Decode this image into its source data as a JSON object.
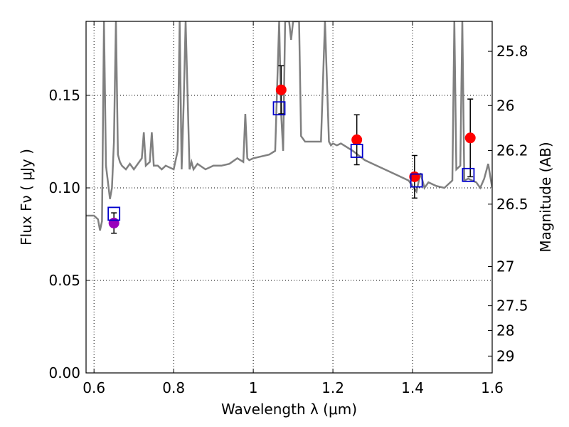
{
  "chart_data": {
    "type": "scatter",
    "title": "",
    "xlabel": "Wavelength  λ (μm)",
    "ylabel": "Flux  Fν  ( μJy )",
    "ylabel_right": "Magnitude (AB)",
    "xlim": [
      0.58,
      1.6
    ],
    "ylim": [
      0.0,
      0.19
    ],
    "grid": true,
    "x_ticks": [
      0.6,
      0.8,
      1.0,
      1.2,
      1.4,
      1.6
    ],
    "x_tick_labels": [
      "0.6",
      "0.8",
      "1",
      "1.2",
      "1.4",
      "1.6"
    ],
    "y_ticks": [
      0.0,
      0.05,
      0.1,
      0.15
    ],
    "y_tick_labels": [
      "0.00",
      "0.05",
      "0.10",
      "0.15"
    ],
    "right_ticks": [
      {
        "label": "25.8",
        "flux": 0.1738
      },
      {
        "label": "26",
        "flux": 0.1445
      },
      {
        "label": "26.2",
        "flux": 0.1202
      },
      {
        "label": "26.5",
        "flux": 0.0912
      },
      {
        "label": "27",
        "flux": 0.0575
      },
      {
        "label": "27.5",
        "flux": 0.0363
      },
      {
        "label": "28",
        "flux": 0.0229
      },
      {
        "label": "29",
        "flux": 0.0091
      }
    ],
    "model_spectrum": {
      "color": "#808080",
      "x": [
        0.58,
        0.6,
        0.61,
        0.615,
        0.62,
        0.625,
        0.63,
        0.64,
        0.645,
        0.65,
        0.655,
        0.66,
        0.665,
        0.67,
        0.68,
        0.69,
        0.7,
        0.72,
        0.725,
        0.73,
        0.74,
        0.745,
        0.75,
        0.76,
        0.77,
        0.78,
        0.8,
        0.81,
        0.815,
        0.82,
        0.825,
        0.83,
        0.84,
        0.845,
        0.85,
        0.86,
        0.88,
        0.9,
        0.92,
        0.94,
        0.96,
        0.975,
        0.98,
        0.985,
        0.99,
        1.0,
        1.02,
        1.04,
        1.055,
        1.06,
        1.065,
        1.07,
        1.075,
        1.08,
        1.085,
        1.09,
        1.095,
        1.1,
        1.105,
        1.11,
        1.115,
        1.12,
        1.13,
        1.14,
        1.15,
        1.17,
        1.18,
        1.19,
        1.195,
        1.2,
        1.21,
        1.22,
        1.25,
        1.28,
        1.3,
        1.33,
        1.36,
        1.39,
        1.41,
        1.42,
        1.43,
        1.44,
        1.46,
        1.48,
        1.5,
        1.505,
        1.51,
        1.52,
        1.525,
        1.53,
        1.54,
        1.55,
        1.56,
        1.57,
        1.58,
        1.59,
        1.6
      ],
      "y": [
        0.085,
        0.085,
        0.083,
        0.077,
        0.082,
        0.19,
        0.112,
        0.094,
        0.1,
        0.125,
        0.19,
        0.118,
        0.114,
        0.112,
        0.11,
        0.113,
        0.11,
        0.116,
        0.13,
        0.112,
        0.114,
        0.13,
        0.112,
        0.112,
        0.11,
        0.112,
        0.11,
        0.12,
        0.19,
        0.11,
        0.145,
        0.19,
        0.11,
        0.114,
        0.11,
        0.113,
        0.11,
        0.112,
        0.112,
        0.113,
        0.116,
        0.114,
        0.14,
        0.116,
        0.115,
        0.116,
        0.117,
        0.118,
        0.12,
        0.155,
        0.19,
        0.14,
        0.12,
        0.19,
        0.19,
        0.19,
        0.18,
        0.19,
        0.19,
        0.19,
        0.19,
        0.128,
        0.125,
        0.125,
        0.125,
        0.125,
        0.19,
        0.125,
        0.123,
        0.124,
        0.123,
        0.124,
        0.12,
        0.115,
        0.113,
        0.11,
        0.107,
        0.104,
        0.098,
        0.108,
        0.1,
        0.103,
        0.101,
        0.1,
        0.104,
        0.19,
        0.11,
        0.112,
        0.19,
        0.104,
        0.105,
        0.104,
        0.103,
        0.1,
        0.105,
        0.113,
        0.1
      ]
    },
    "series": [
      {
        "marker": "circle",
        "color": "#9900bb",
        "points": [
          {
            "x": 0.65,
            "y": 0.081,
            "err": 0.0055
          }
        ]
      },
      {
        "marker": "circle",
        "color": "#ff0000",
        "points": [
          {
            "x": 1.07,
            "y": 0.153,
            "err": 0.013
          },
          {
            "x": 1.26,
            "y": 0.126,
            "err": 0.0135
          },
          {
            "x": 1.405,
            "y": 0.106,
            "err": 0.0115
          },
          {
            "x": 1.545,
            "y": 0.127,
            "err": 0.021
          }
        ]
      },
      {
        "marker": "open-square",
        "color": "#0000cc",
        "points": [
          {
            "x": 0.65,
            "y": 0.086
          },
          {
            "x": 1.065,
            "y": 0.143
          },
          {
            "x": 1.26,
            "y": 0.12
          },
          {
            "x": 1.41,
            "y": 0.104
          },
          {
            "x": 1.54,
            "y": 0.107
          }
        ]
      }
    ]
  }
}
